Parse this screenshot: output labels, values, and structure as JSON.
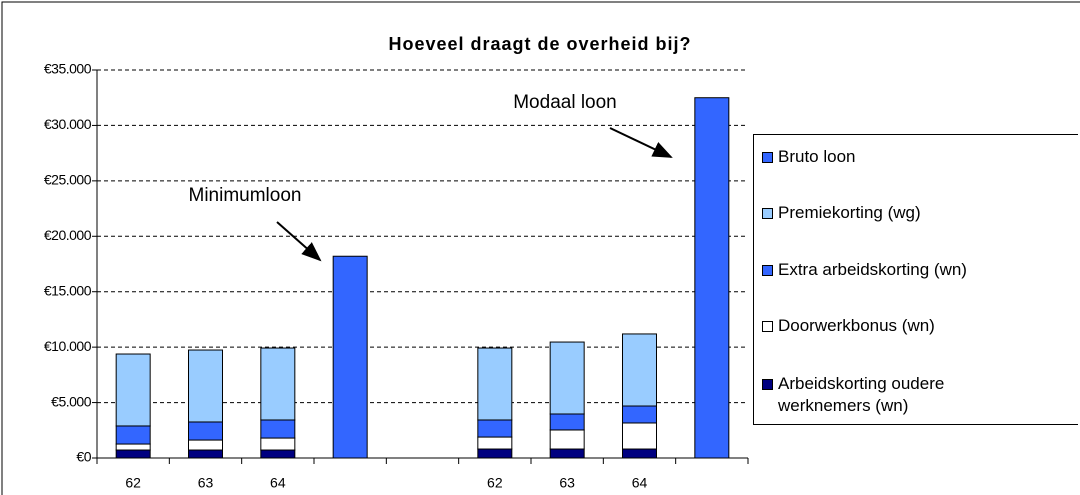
{
  "chart_data": {
    "type": "stacked_bar",
    "title": "Hoeveel draagt de overheid bij?",
    "categories": [
      "62",
      "63",
      "64",
      null,
      null,
      "62",
      "63",
      "64",
      null
    ],
    "series": [
      {
        "name": "Arbeidskorting oudere werknemers (wn)",
        "color": "#000080",
        "values": [
          720,
          720,
          720,
          null,
          null,
          810,
          810,
          810,
          null
        ]
      },
      {
        "name": "Doorwerkbonus (wn)",
        "color": "#ffffff",
        "values": [
          540,
          900,
          1080,
          null,
          null,
          1080,
          1720,
          2350,
          null
        ]
      },
      {
        "name": "Extra arbeidskorting (wn)",
        "color": "#3366ff",
        "values": [
          1630,
          1630,
          1630,
          null,
          null,
          1540,
          1440,
          1530,
          null
        ]
      },
      {
        "name": "Premiekorting (wg)",
        "color": "#99ccff",
        "values": [
          6490,
          6490,
          6490,
          null,
          null,
          6490,
          6490,
          6500,
          null
        ]
      },
      {
        "name": "Bruto loon",
        "color": "#3366ff",
        "values": [
          null,
          null,
          null,
          18200,
          null,
          null,
          null,
          null,
          32500
        ]
      }
    ],
    "ylim": [
      0,
      35000
    ],
    "yticks": [
      {
        "value": 0,
        "label": "€0"
      },
      {
        "value": 5000,
        "label": "€5.000"
      },
      {
        "value": 10000,
        "label": "€10.000"
      },
      {
        "value": 15000,
        "label": "€15.000"
      },
      {
        "value": 20000,
        "label": "€20.000"
      },
      {
        "value": 25000,
        "label": "€25.000"
      },
      {
        "value": 30000,
        "label": "€30.000"
      },
      {
        "value": 35000,
        "label": "€35.000"
      }
    ],
    "grid": true,
    "legend": "right",
    "annotations": [
      {
        "text": "Minimumloon"
      },
      {
        "text": "Modaal loon"
      }
    ]
  }
}
